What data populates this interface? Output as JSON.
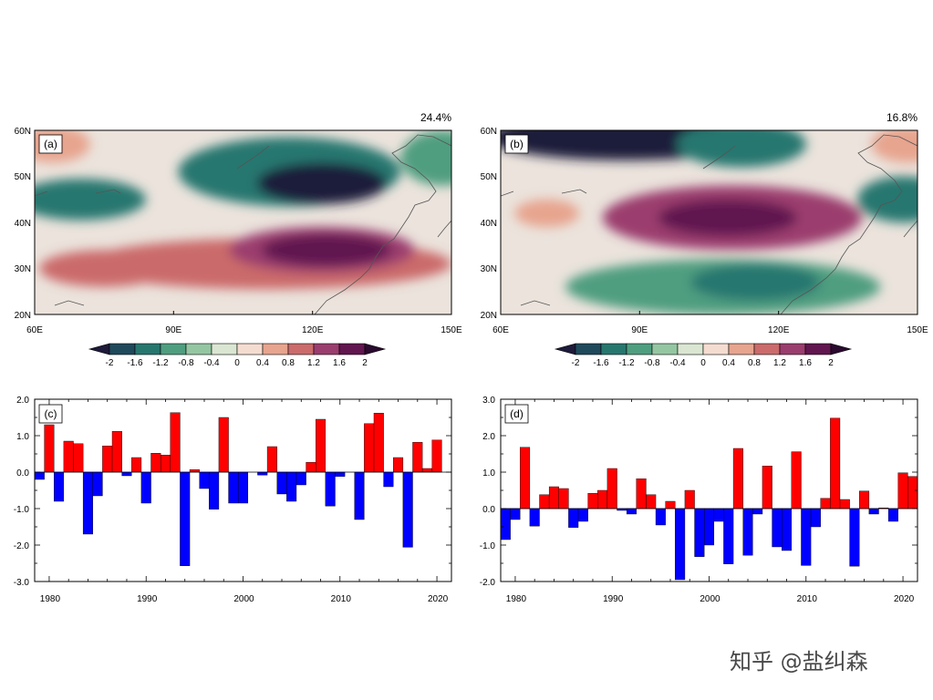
{
  "chart_data": [
    {
      "type": "heatmap",
      "panel_label": "(a)",
      "variance_label": "24.4%",
      "x_ticks": [
        "60E",
        "90E",
        "120E",
        "150E"
      ],
      "y_ticks": [
        "60N",
        "50N",
        "40N",
        "30N",
        "20N"
      ],
      "lon_range": [
        60,
        150
      ],
      "lat_range": [
        20,
        60
      ],
      "field": [
        {
          "lon": 70,
          "lat": 45,
          "value": -1.2,
          "rx": 14,
          "ry": 4.5
        },
        {
          "lon": 115,
          "lat": 51,
          "value": -1.2,
          "rx": 24,
          "ry": 7.5
        },
        {
          "lon": 122,
          "lat": 48.5,
          "value": -2.0,
          "rx": 14,
          "ry": 4.5
        },
        {
          "lon": 148,
          "lat": 54,
          "value": -0.8,
          "rx": 9,
          "ry": 6
        },
        {
          "lon": 64,
          "lat": 57,
          "value": 0.6,
          "rx": 8,
          "ry": 4
        },
        {
          "lon": 110,
          "lat": 31,
          "value": 1.2,
          "rx": 40,
          "ry": 5.5
        },
        {
          "lon": 122,
          "lat": 34,
          "value": 1.6,
          "rx": 20,
          "ry": 5
        },
        {
          "lon": 123,
          "lat": 34,
          "value": 2.0,
          "rx": 14,
          "ry": 3.5
        },
        {
          "lon": 75,
          "lat": 30,
          "value": 1.2,
          "rx": 14,
          "ry": 4
        }
      ]
    },
    {
      "type": "heatmap",
      "panel_label": "(b)",
      "variance_label": "16.8%",
      "x_ticks": [
        "60E",
        "90E",
        "120E",
        "150E"
      ],
      "y_ticks": [
        "60N",
        "50N",
        "40N",
        "30N",
        "20N"
      ],
      "lon_range": [
        60,
        150
      ],
      "lat_range": [
        20,
        60
      ],
      "field": [
        {
          "lon": 87,
          "lat": 58.5,
          "value": -2.0,
          "rx": 30,
          "ry": 5
        },
        {
          "lon": 112,
          "lat": 57,
          "value": -1.2,
          "rx": 14,
          "ry": 5
        },
        {
          "lon": 147,
          "lat": 45,
          "value": -1.2,
          "rx": 10,
          "ry": 5
        },
        {
          "lon": 110,
          "lat": 41,
          "value": 1.6,
          "rx": 28,
          "ry": 7
        },
        {
          "lon": 109,
          "lat": 41,
          "value": 2.0,
          "rx": 15,
          "ry": 4
        },
        {
          "lon": 70,
          "lat": 42,
          "value": 0.8,
          "rx": 7,
          "ry": 3
        },
        {
          "lon": 148,
          "lat": 57,
          "value": 0.8,
          "rx": 8,
          "ry": 4
        },
        {
          "lon": 108,
          "lat": 26,
          "value": -0.8,
          "rx": 34,
          "ry": 6
        },
        {
          "lon": 115,
          "lat": 27,
          "value": -1.2,
          "rx": 14,
          "ry": 4
        }
      ]
    },
    {
      "type": "bar",
      "panel_label": "(c)",
      "x_ticks": [
        "1980",
        "1990",
        "2000",
        "2010",
        "2020"
      ],
      "y_ticks": [
        "2.0",
        "1.0",
        "0.0",
        "-1.0",
        "-2.0",
        "-3.0"
      ],
      "ylim": [
        -3.0,
        2.0
      ],
      "xlim": [
        1978.5,
        2021.5
      ],
      "years": [
        1979,
        1980,
        1981,
        1982,
        1983,
        1984,
        1985,
        1986,
        1987,
        1988,
        1989,
        1990,
        1991,
        1992,
        1993,
        1994,
        1995,
        1996,
        1997,
        1998,
        1999,
        2000,
        2001,
        2002,
        2003,
        2004,
        2005,
        2006,
        2007,
        2008,
        2009,
        2010,
        2011,
        2012,
        2013,
        2014,
        2015,
        2016,
        2017,
        2018,
        2019,
        2020,
        2021
      ],
      "values": [
        -0.2,
        1.3,
        -0.8,
        0.85,
        0.78,
        -1.7,
        -0.65,
        0.72,
        1.12,
        -0.1,
        0.4,
        -0.85,
        0.52,
        0.47,
        1.63,
        -2.57,
        0.07,
        -0.45,
        -1.02,
        1.5,
        -0.85,
        -0.85,
        0.0,
        -0.08,
        0.7,
        -0.6,
        -0.8,
        -0.35,
        0.27,
        1.45,
        -0.93,
        -0.12,
        0.0,
        -1.3,
        1.33,
        1.62,
        -0.4,
        0.4,
        -2.06,
        0.82,
        0.1,
        0.88,
        0.0
      ]
    },
    {
      "type": "bar",
      "panel_label": "(d)",
      "x_ticks": [
        "1980",
        "1990",
        "2000",
        "2010",
        "2020"
      ],
      "y_ticks": [
        "3.0",
        "2.0",
        "1.0",
        "0.0",
        "-1.0",
        "-2.0"
      ],
      "ylim": [
        -2.0,
        3.0
      ],
      "xlim": [
        1978.5,
        2021.5
      ],
      "years": [
        1979,
        1980,
        1981,
        1982,
        1983,
        1984,
        1985,
        1986,
        1987,
        1988,
        1989,
        1990,
        1991,
        1992,
        1993,
        1994,
        1995,
        1996,
        1997,
        1998,
        1999,
        2000,
        2001,
        2002,
        2003,
        2004,
        2005,
        2006,
        2007,
        2008,
        2009,
        2010,
        2011,
        2012,
        2013,
        2014,
        2015,
        2016,
        2017,
        2018,
        2019,
        2020,
        2021
      ],
      "values": [
        -0.85,
        -0.3,
        1.68,
        -0.48,
        0.38,
        0.6,
        0.55,
        -0.52,
        -0.35,
        0.42,
        0.5,
        1.1,
        -0.05,
        -0.15,
        0.82,
        0.38,
        -0.45,
        0.2,
        -1.95,
        0.5,
        -1.32,
        -1.0,
        -0.35,
        -1.52,
        1.65,
        -1.28,
        -0.15,
        1.17,
        -1.05,
        -1.15,
        1.56,
        -1.56,
        -0.5,
        0.28,
        2.48,
        0.25,
        -1.58,
        0.48,
        -0.15,
        0.02,
        -0.35,
        0.98,
        0.88
      ]
    }
  ],
  "colorbar": {
    "labels": [
      "-2",
      "-1.6",
      "-1.2",
      "-0.8",
      "-0.4",
      "0",
      "0.4",
      "0.8",
      "1.2",
      "1.6",
      "2"
    ],
    "colors": [
      "#1d1a3b",
      "#1f4a5c",
      "#27776f",
      "#4f9e80",
      "#94c6a2",
      "#dae6d2",
      "#f5dcd0",
      "#e7a48e",
      "#cb6b6b",
      "#9b3d6e",
      "#61164f",
      "#2a0a2e"
    ]
  },
  "colors": {
    "positive_bar": "#ff0000",
    "negative_bar": "#0000ff",
    "land_outline": "#555555"
  },
  "watermark": "知乎 @盐纠森"
}
